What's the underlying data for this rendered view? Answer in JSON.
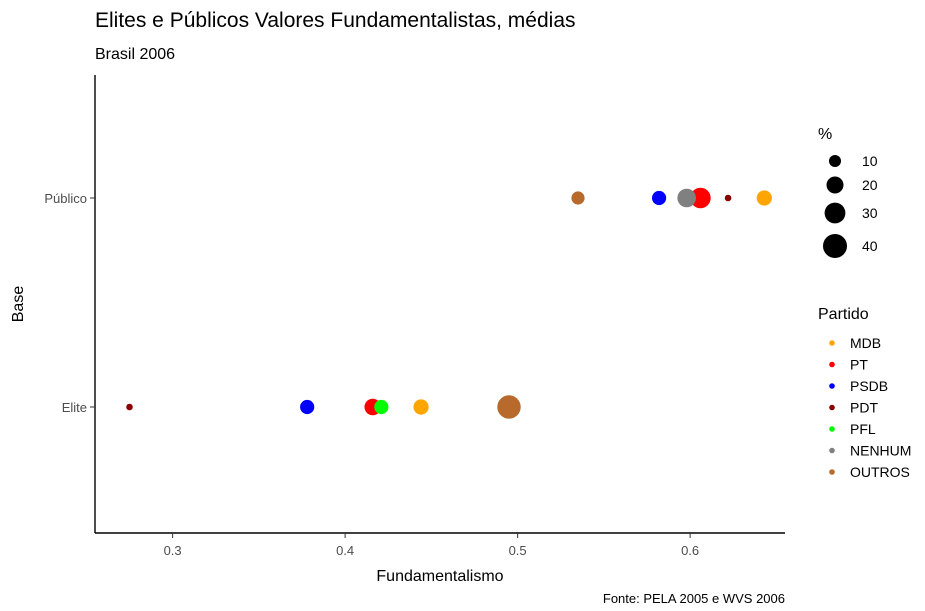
{
  "chart_data": {
    "type": "scatter",
    "title": "Elites e Públicos Valores Fundamentalistas, médias",
    "subtitle": "Brasil 2006",
    "xlabel": "Fundamentalismo",
    "ylabel": "Base",
    "caption": "Fonte: PELA 2005 e WVS 2006",
    "xlim": [
      0.255,
      0.655
    ],
    "x_ticks": [
      "0.3",
      "0.4",
      "0.5",
      "0.6"
    ],
    "categories": [
      "Elite",
      "Público"
    ],
    "grid": false,
    "size_legend": {
      "title": "%",
      "labels": [
        "10",
        "20",
        "30",
        "40"
      ],
      "values": [
        10,
        20,
        30,
        40
      ]
    },
    "color_legend": {
      "title": "Partido",
      "placement": "right"
    },
    "series": [
      {
        "name": "MDB",
        "color": "#FFA500",
        "points": [
          {
            "base": "Elite",
            "x": 0.444,
            "pct": 16
          },
          {
            "base": "Público",
            "x": 0.643,
            "pct": 16
          }
        ]
      },
      {
        "name": "PT",
        "color": "#FF0000",
        "points": [
          {
            "base": "Elite",
            "x": 0.416,
            "pct": 19
          },
          {
            "base": "Público",
            "x": 0.606,
            "pct": 29
          }
        ]
      },
      {
        "name": "PSDB",
        "color": "#0000FF",
        "points": [
          {
            "base": "Elite",
            "x": 0.378,
            "pct": 14
          },
          {
            "base": "Público",
            "x": 0.582,
            "pct": 14
          }
        ]
      },
      {
        "name": "PDT",
        "color": "#8B0000",
        "points": [
          {
            "base": "Elite",
            "x": 0.275,
            "pct": 3
          },
          {
            "base": "Público",
            "x": 0.622,
            "pct": 3
          }
        ]
      },
      {
        "name": "PFL",
        "color": "#00FF00",
        "points": [
          {
            "base": "Elite",
            "x": 0.421,
            "pct": 14
          }
        ]
      },
      {
        "name": "NENHUM",
        "color": "#808080",
        "points": [
          {
            "base": "Público",
            "x": 0.598,
            "pct": 24
          }
        ]
      },
      {
        "name": "OUTROS",
        "color": "#B8692C",
        "points": [
          {
            "base": "Elite",
            "x": 0.495,
            "pct": 38
          },
          {
            "base": "Público",
            "x": 0.535,
            "pct": 12
          }
        ]
      }
    ]
  }
}
